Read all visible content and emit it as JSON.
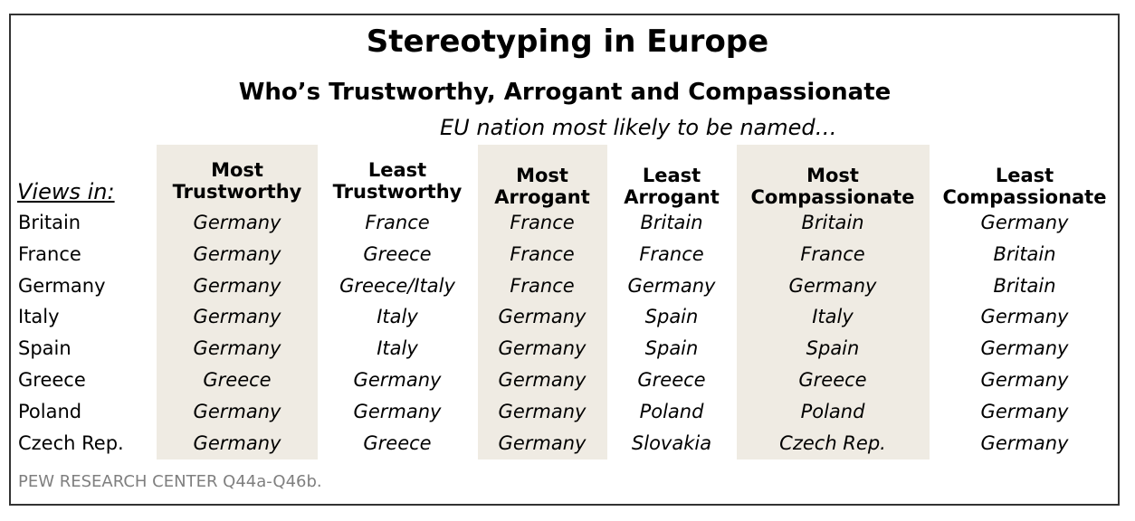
{
  "chart_data": {
    "type": "table",
    "title": "Stereotyping in Europe",
    "subtitle": "Who’s Trustworthy, Arrogant and Compassionate",
    "lead": "EU nation most likely to be named…",
    "row_header": "Views in:",
    "columns": [
      [
        "Most",
        "Trustworthy"
      ],
      [
        "Least",
        "Trustworthy"
      ],
      [
        "Most",
        "Arrogant"
      ],
      [
        "Least",
        "Arrogant"
      ],
      [
        "Most",
        "Compassionate"
      ],
      [
        "Least",
        "Compassionate"
      ]
    ],
    "rows": [
      {
        "country": "Britain",
        "values": [
          "Germany",
          "France",
          "France",
          "Britain",
          "Britain",
          "Germany"
        ]
      },
      {
        "country": "France",
        "values": [
          "Germany",
          "Greece",
          "France",
          "France",
          "France",
          "Britain"
        ]
      },
      {
        "country": "Germany",
        "values": [
          "Germany",
          "Greece/Italy",
          "France",
          "Germany",
          "Germany",
          "Britain"
        ]
      },
      {
        "country": "Italy",
        "values": [
          "Germany",
          "Italy",
          "Germany",
          "Spain",
          "Italy",
          "Germany"
        ]
      },
      {
        "country": "Spain",
        "values": [
          "Germany",
          "Italy",
          "Germany",
          "Spain",
          "Spain",
          "Germany"
        ]
      },
      {
        "country": "Greece",
        "values": [
          "Greece",
          "Germany",
          "Germany",
          "Greece",
          "Greece",
          "Germany"
        ]
      },
      {
        "country": "Poland",
        "values": [
          "Germany",
          "Germany",
          "Germany",
          "Poland",
          "Poland",
          "Germany"
        ]
      },
      {
        "country": "Czech Rep.",
        "values": [
          "Germany",
          "Greece",
          "Germany",
          "Slovakia",
          "Czech Rep.",
          "Germany"
        ]
      }
    ],
    "source": "PEW RESEARCH CENTER Q44a-Q46b.",
    "shaded_column_color": "#efebe3"
  }
}
